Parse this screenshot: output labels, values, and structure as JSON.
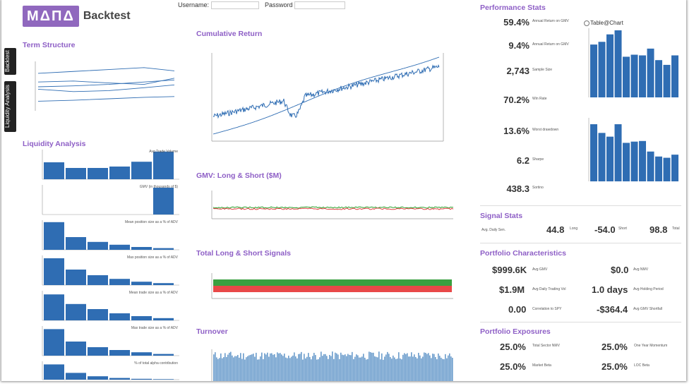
{
  "header": {
    "brand": "MΔΠΔ",
    "title": "Backtest",
    "login_label": "Username:",
    "password_label": "Password"
  },
  "sidebar": {
    "tabs": [
      "Backtest",
      "Liquidity Analysis"
    ]
  },
  "left": {
    "term_structure_title": "Term Structure",
    "liquidity_title": "Liquidity Analysis",
    "liq_chart_titles": [
      "Avg Trade Volume",
      "GMV (in thousands of $)",
      "Mean position size as a % of ADV",
      "Max position size as a % of ADV",
      "Mean trade size as a % of ADV",
      "Max trade size as a % of ADV",
      "% of total alpha contribution"
    ]
  },
  "middle": {
    "cumret_title": "Cumulative Return",
    "gmv_title": "GMV: Long & Short ($M)",
    "signals_title": "Total Long & Short Signals",
    "turnover_title": "Turnover"
  },
  "right": {
    "perf_title": "Performance Stats",
    "table_chart_toggle": "Table@Chart",
    "perf": [
      {
        "value": "59.4%",
        "label": "Annual Return on GMV"
      },
      {
        "value": "9.4%",
        "label": "Annual Return on GMV"
      },
      {
        "value": "2,743",
        "label": "Sample Size"
      },
      {
        "value": "70.2%",
        "label": "Win Rate"
      },
      {
        "value": "13.6%",
        "label": "Worst drawdown"
      },
      {
        "value": "6.2",
        "label": "Sharpe"
      },
      {
        "value": "438.3",
        "label": "Sortino"
      }
    ],
    "signal_title": "Signal Stats",
    "signal_label": "Avg. Daily Sen.",
    "signal_values": [
      "44.8",
      "-54.0",
      "98.8"
    ],
    "signal_suffixes": [
      "Long",
      "Short",
      "Total"
    ],
    "portfolio_title": "Portfolio Characteristics",
    "portfolio": [
      {
        "value": "$999.6K",
        "label": "Avg GMV"
      },
      {
        "value": "$0.0",
        "label": "Avg NMV"
      },
      {
        "value": "$1.9M",
        "label": "Avg Daily Trading Vol"
      },
      {
        "value": "1.0 days",
        "label": "Avg Holding Period"
      },
      {
        "value": "0.00",
        "label": "Correlation to SPY"
      },
      {
        "value": "-$364.4",
        "label": "Avg GMV Shortfall"
      }
    ],
    "exposures_title": "Portfolio Exposures",
    "exposures": [
      {
        "value": "25.0%",
        "label": "Total Sector NMV"
      },
      {
        "value": "25.0%",
        "label": "One Year Momentum"
      },
      {
        "value": "25.0%",
        "label": "Market Beta"
      },
      {
        "value": "25.0%",
        "label": "LOC Beta"
      }
    ]
  },
  "chart_data": [
    {
      "type": "bar",
      "name": "perf-bars-top",
      "values": [
        78,
        82,
        93,
        99,
        60,
        63,
        62,
        72,
        55,
        48,
        62
      ],
      "ylim": [
        0,
        100
      ]
    },
    {
      "type": "bar",
      "name": "perf-bars-bottom",
      "values": [
        92,
        78,
        72,
        92,
        62,
        64,
        65,
        48,
        40,
        38,
        43
      ],
      "ylim": [
        0,
        100
      ]
    },
    {
      "type": "bar",
      "name": "liquidity",
      "series": [
        {
          "values": [
            60,
            40,
            40,
            45,
            62,
            98
          ]
        },
        {
          "values": [
            0,
            0,
            0,
            0,
            0,
            95
          ]
        },
        {
          "values": [
            98,
            45,
            28,
            18,
            10,
            6
          ]
        },
        {
          "values": [
            95,
            55,
            35,
            22,
            12,
            7
          ]
        },
        {
          "values": [
            92,
            58,
            40,
            25,
            15,
            8
          ]
        },
        {
          "values": [
            94,
            50,
            30,
            20,
            12,
            6
          ]
        },
        {
          "values": [
            90,
            40,
            20,
            10,
            5,
            3
          ]
        }
      ]
    },
    {
      "type": "line",
      "name": "term-structure",
      "series": [
        {
          "values": [
            78,
            82,
            86,
            90,
            82
          ]
        },
        {
          "values": [
            60,
            62,
            58,
            55,
            70
          ]
        },
        {
          "values": [
            50,
            52,
            55,
            60,
            65
          ]
        },
        {
          "values": [
            45,
            40,
            42,
            48,
            55
          ]
        },
        {
          "values": [
            20,
            22,
            25,
            28,
            30
          ]
        }
      ]
    }
  ]
}
